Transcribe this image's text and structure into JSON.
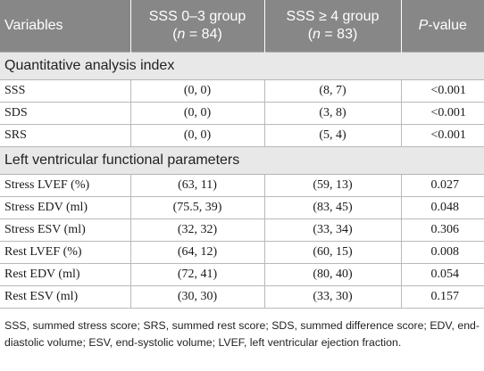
{
  "header": {
    "variables": "Variables",
    "group1_line1": "SSS 0–3 group",
    "group1_n_pre": "(",
    "group1_n_var": "n",
    "group1_n_post": " = 84)",
    "group2_line1": "SSS ≥ 4 group",
    "group2_n_pre": "(",
    "group2_n_var": "n",
    "group2_n_post": " = 83)",
    "p_italic": "P",
    "p_rest": "-value"
  },
  "sections": [
    {
      "title": "Quantitative analysis index",
      "rows": [
        {
          "label": "SSS",
          "g1": "(0, 0)",
          "g2": "(8, 7)",
          "p": "<0.001"
        },
        {
          "label": "SDS",
          "g1": "(0, 0)",
          "g2": "(3, 8)",
          "p": "<0.001"
        },
        {
          "label": "SRS",
          "g1": "(0, 0)",
          "g2": "(5, 4)",
          "p": "<0.001"
        }
      ]
    },
    {
      "title": "Left ventricular functional parameters",
      "rows": [
        {
          "label": "Stress LVEF (%)",
          "g1": "(63, 11)",
          "g2": "(59, 13)",
          "p": "0.027"
        },
        {
          "label": "Stress EDV (ml)",
          "g1": "(75.5, 39)",
          "g2": "(83, 45)",
          "p": "0.048"
        },
        {
          "label": "Stress ESV (ml)",
          "g1": "(32, 32)",
          "g2": "(33, 34)",
          "p": "0.306"
        },
        {
          "label": "Rest LVEF (%)",
          "g1": "(64, 12)",
          "g2": "(60, 15)",
          "p": "0.008"
        },
        {
          "label": "Rest EDV (ml)",
          "g1": "(72, 41)",
          "g2": "(80, 40)",
          "p": "0.054"
        },
        {
          "label": "Rest ESV (ml)",
          "g1": "(30, 30)",
          "g2": "(33, 30)",
          "p": "0.157"
        }
      ]
    }
  ],
  "footnote": "SSS, summed stress score; SRS, summed rest score; SDS, summed difference score; EDV, end-diastolic volume; ESV, end-systolic volume; LVEF, left ventricular ejection fraction.",
  "colors": {
    "header_bg": "#878787",
    "section_bg": "#e8e8e8"
  }
}
